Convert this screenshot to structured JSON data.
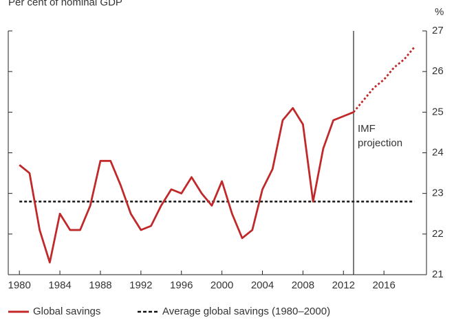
{
  "chart_data": {
    "type": "line",
    "subtitle": "Per cent of nominal GDP",
    "y_unit": "%",
    "x": [
      1980,
      1981,
      1982,
      1983,
      1984,
      1985,
      1986,
      1987,
      1988,
      1989,
      1990,
      1991,
      1992,
      1993,
      1994,
      1995,
      1996,
      1997,
      1998,
      1999,
      2000,
      2001,
      2002,
      2003,
      2004,
      2005,
      2006,
      2007,
      2008,
      2009,
      2010,
      2011,
      2012,
      2013,
      2014,
      2015,
      2016,
      2017,
      2018,
      2019
    ],
    "series": [
      {
        "name": "Global savings",
        "color": "#c0282a",
        "values": [
          23.7,
          23.5,
          22.1,
          21.3,
          22.5,
          22.1,
          22.1,
          22.7,
          23.8,
          23.8,
          23.2,
          22.5,
          22.1,
          22.2,
          22.7,
          23.1,
          23.0,
          23.4,
          23.0,
          22.7,
          23.3,
          22.5,
          21.9,
          22.1,
          23.1,
          23.6,
          24.8,
          25.1,
          24.7,
          22.8,
          24.1,
          24.8,
          24.9,
          25.0,
          25.3,
          25.6,
          25.8,
          26.1,
          26.3,
          26.6
        ]
      }
    ],
    "reference_line": {
      "name": "Average global savings (1980–2000)",
      "color": "#111111",
      "value": 22.8,
      "x": [
        1980,
        2019
      ]
    },
    "annotation": {
      "text": "IMF projection",
      "x": 2013
    },
    "xlim": [
      1978.9,
      2020.2
    ],
    "xticks": [
      1980,
      1984,
      1988,
      1992,
      1996,
      2000,
      2004,
      2008,
      2012,
      2016
    ],
    "ylim": [
      21,
      27
    ],
    "yticks": [
      21,
      22,
      23,
      24,
      25,
      26,
      27
    ]
  }
}
